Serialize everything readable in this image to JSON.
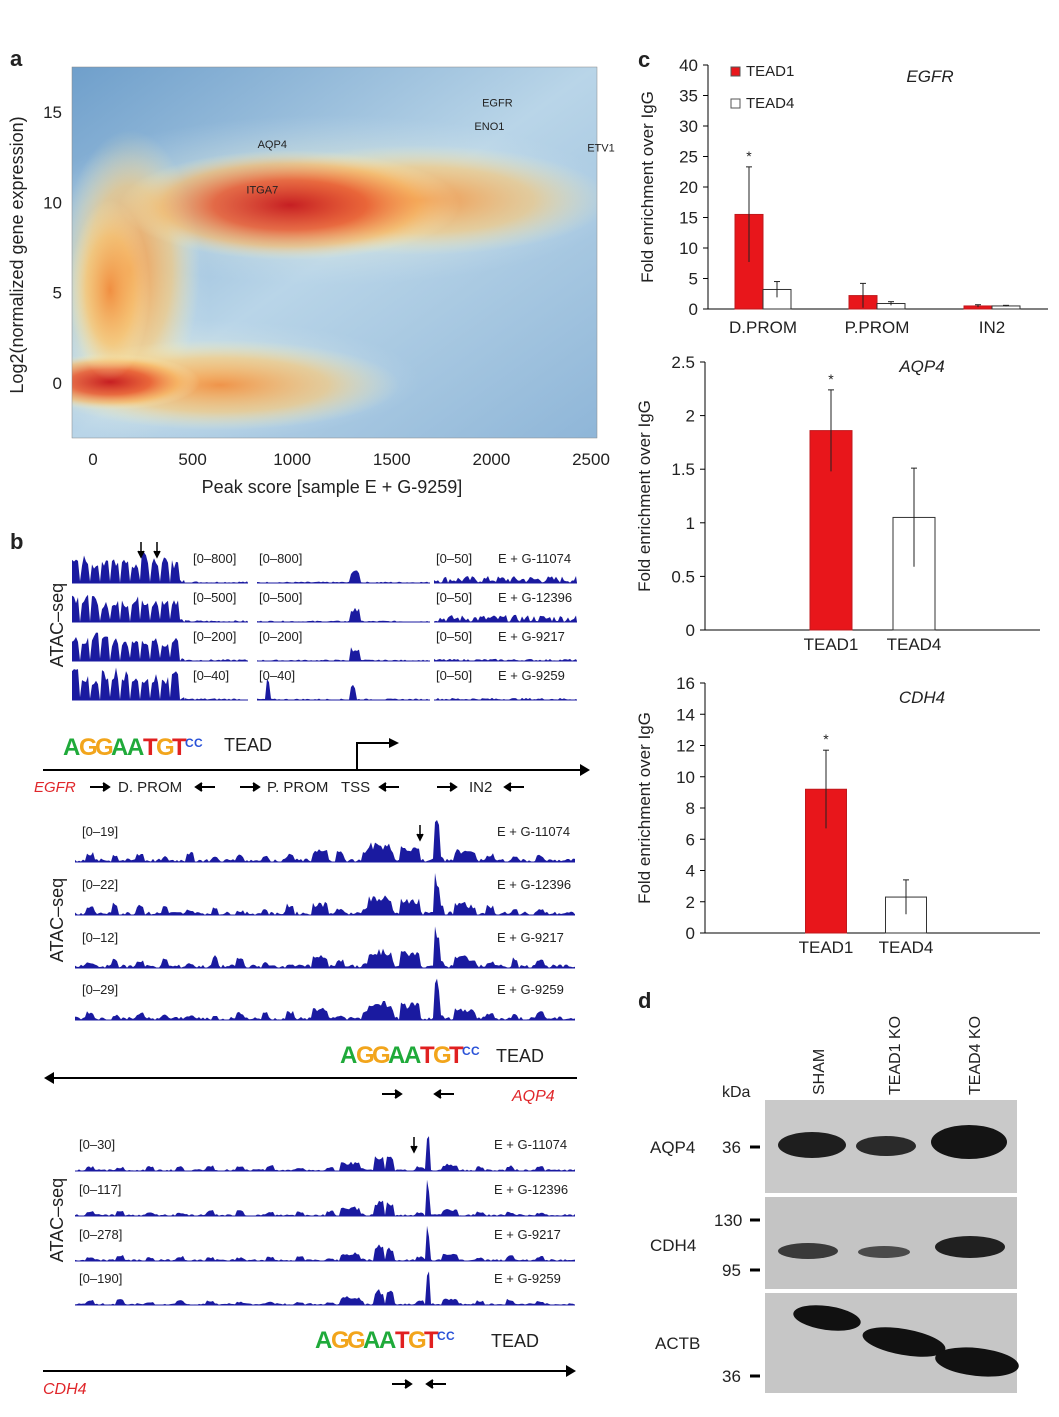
{
  "panels": {
    "a": "a",
    "b": "b",
    "c": "c",
    "d": "d"
  },
  "panel_a": {
    "xlabel": "Peak score [sample  E + G-9259]",
    "ylabel": "Log2(normalized gene expression)",
    "xticks": [
      "0",
      "500",
      "1000",
      "1500",
      "2000",
      "2500"
    ],
    "yticks": [
      "0",
      "5",
      "10",
      "15"
    ],
    "gene_labels": [
      {
        "name": "AQP4",
        "x": 900,
        "y": 13
      },
      {
        "name": "ITGA7",
        "x": 850,
        "y": 10.5
      },
      {
        "name": "EGFR",
        "x": 2030,
        "y": 15.3
      },
      {
        "name": "ENO1",
        "x": 1990,
        "y": 14
      },
      {
        "name": "ETV1",
        "x": 2550,
        "y": 12.8
      }
    ],
    "colormap": [
      "#2f6fb0",
      "#a9cbe3",
      "#f7f2c0",
      "#f9b35e",
      "#e8572e",
      "#c4151c"
    ]
  },
  "panel_b": {
    "track_label": "ATAC–seq",
    "samples": [
      "E + G-11074",
      "E + G-12396",
      "E + G-9217",
      "E + G-9259"
    ],
    "egfr": {
      "ranges_1": [
        "[0–800]",
        "[0–500]",
        "[0–200]",
        "[0–40]"
      ],
      "ranges_2": [
        "[0–800]",
        "[0–500]",
        "[0–200]",
        "[0–40]"
      ],
      "ranges_3": [
        "[0–50]",
        "[0–50]",
        "[0–50]",
        "[0–50]"
      ],
      "gene": "EGFR",
      "regions": [
        "D. PROM",
        "P. PROM",
        "TSS",
        "IN2"
      ]
    },
    "aqp4": {
      "ranges": [
        "[0–19]",
        "[0–22]",
        "[0–12]",
        "[0–29]"
      ],
      "gene": "AQP4"
    },
    "cdh4": {
      "ranges": [
        "[0–30]",
        "[0–117]",
        "[0–278]",
        "[0–190]"
      ],
      "gene": "CDH4"
    },
    "motif": {
      "sequence": "AGGAATGTCC",
      "label": "TEAD"
    }
  },
  "chart_data": [
    {
      "type": "bar",
      "title": "EGFR",
      "ylabel": "Fold enrichment over IgG",
      "ylim": [
        0,
        40
      ],
      "yticks": [
        "0",
        "5",
        "10",
        "15",
        "20",
        "25",
        "30",
        "35",
        "40"
      ],
      "categories": [
        "D.PROM",
        "P.PROM",
        "IN2"
      ],
      "legend": "top-left",
      "series": [
        {
          "name": "TEAD1",
          "color": "#e8161b",
          "values": [
            15.5,
            2.2,
            0.5
          ],
          "errors": [
            7.8,
            2.0,
            0.2
          ]
        },
        {
          "name": "TEAD4",
          "color": "#ffffff",
          "values": [
            3.2,
            0.9,
            0.5
          ],
          "errors": [
            1.3,
            0.3,
            0.1
          ]
        }
      ],
      "significance": [
        "*",
        "",
        ""
      ]
    },
    {
      "type": "bar",
      "title": "AQP4",
      "ylabel": "Fold enrichment over IgG",
      "ylim": [
        0,
        2.5
      ],
      "yticks": [
        "0",
        "0.5",
        "1",
        "1.5",
        "2",
        "2.5"
      ],
      "categories": [
        "TEAD1",
        "TEAD4"
      ],
      "values": [
        1.86,
        1.05
      ],
      "errors": [
        0.38,
        0.46
      ],
      "colors": [
        "#e8161b",
        "#ffffff"
      ],
      "significance": [
        "*",
        ""
      ]
    },
    {
      "type": "bar",
      "title": "CDH4",
      "ylabel": "Fold enrichment over IgG",
      "ylim": [
        0,
        16
      ],
      "yticks": [
        "0",
        "2",
        "4",
        "6",
        "8",
        "10",
        "12",
        "14",
        "16"
      ],
      "categories": [
        "TEAD1",
        "TEAD4"
      ],
      "values": [
        9.2,
        2.3
      ],
      "errors": [
        2.5,
        1.1
      ],
      "colors": [
        "#e8161b",
        "#ffffff"
      ],
      "significance": [
        "*",
        ""
      ]
    }
  ],
  "panel_d": {
    "lanes": [
      "SHAM",
      "TEAD1 KO",
      "TEAD4 KO"
    ],
    "kda_label": "kDa",
    "blots": [
      {
        "protein": "AQP4",
        "markers": [
          "36"
        ]
      },
      {
        "protein": "CDH4",
        "markers": [
          "130",
          "95"
        ]
      },
      {
        "protein": "ACTB",
        "markers": [
          "36"
        ]
      }
    ]
  }
}
